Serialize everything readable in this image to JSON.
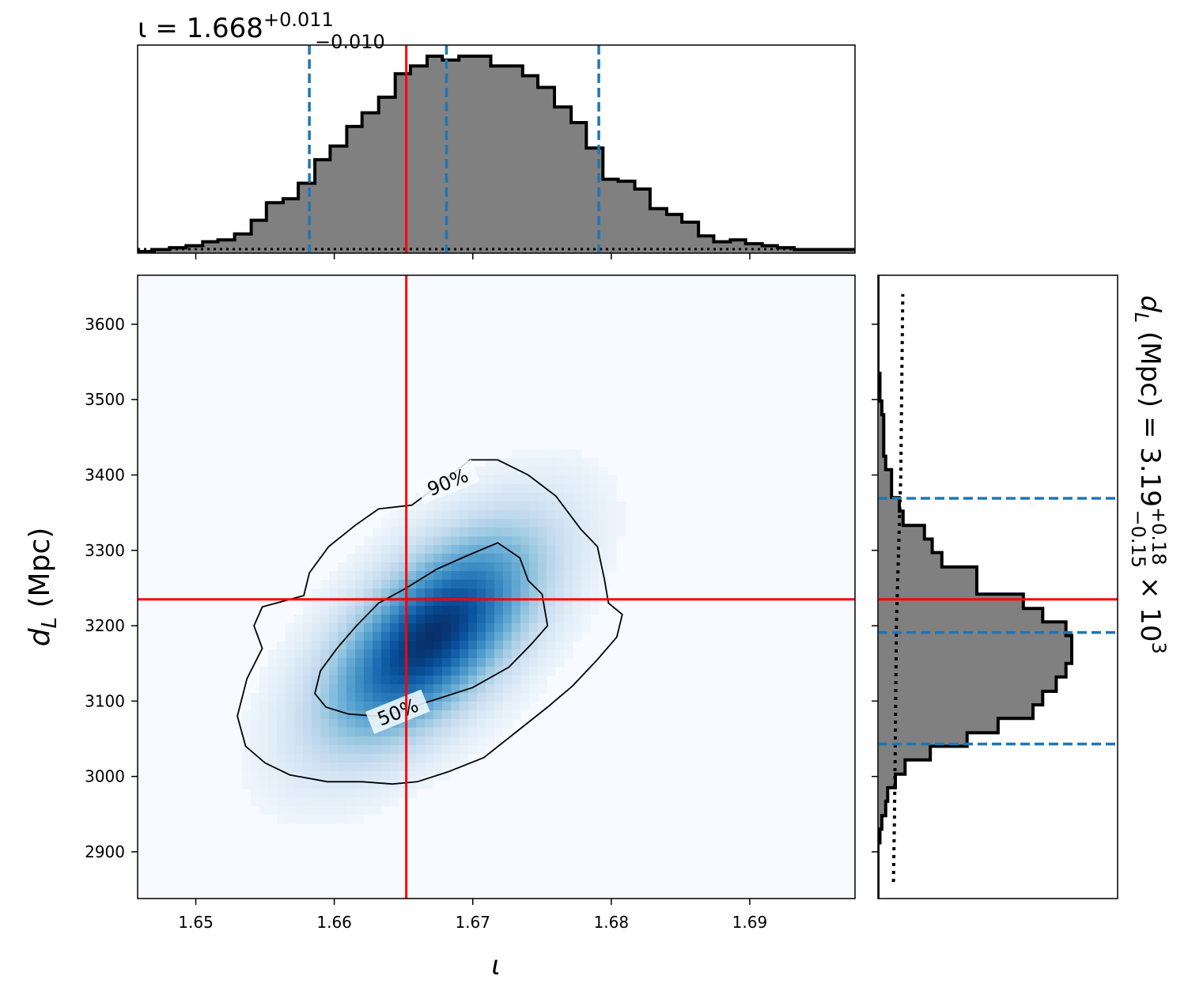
{
  "chart_data": [
    {
      "panel": "top-marginal",
      "type": "histogram",
      "parameter_symbol": "ι",
      "title": {
        "prefix": "ι = 1.668",
        "sup": "+0.011",
        "sub": "−0.010"
      },
      "xlim": [
        1.6458,
        1.6976
      ],
      "bin_edges": [
        1.6458,
        1.647,
        1.6481,
        1.6493,
        1.6505,
        1.6516,
        1.6528,
        1.654,
        1.6551,
        1.6563,
        1.6574,
        1.6586,
        1.6597,
        1.6609,
        1.662,
        1.6632,
        1.6644,
        1.6655,
        1.6667,
        1.6678,
        1.669,
        1.6701,
        1.6713,
        1.6724,
        1.6736,
        1.6747,
        1.6759,
        1.6771,
        1.6782,
        1.6794,
        1.6805,
        1.6817,
        1.6828,
        1.684,
        1.6851,
        1.6863,
        1.6874,
        1.6886,
        1.6897,
        1.6909,
        1.692,
        1.6932,
        1.6943,
        1.6955,
        1.6967,
        1.6976
      ],
      "counts": [
        0.0,
        0.01,
        0.02,
        0.03,
        0.05,
        0.06,
        0.09,
        0.16,
        0.25,
        0.27,
        0.35,
        0.47,
        0.54,
        0.64,
        0.71,
        0.79,
        0.91,
        0.95,
        1.0,
        0.98,
        1.0,
        1.0,
        0.95,
        0.95,
        0.9,
        0.84,
        0.74,
        0.66,
        0.53,
        0.37,
        0.36,
        0.32,
        0.22,
        0.19,
        0.15,
        0.08,
        0.05,
        0.06,
        0.04,
        0.03,
        0.02,
        0.01,
        0.01,
        0.01,
        0.01
      ],
      "quantile_lines": [
        1.6582,
        1.6681,
        1.6791
      ],
      "truth": 1.6652,
      "prior": 0.012
    },
    {
      "panel": "joint",
      "type": "heatmap",
      "xlabel": "ι",
      "ylabel": "d_L (Mpc)",
      "xlim": [
        1.6458,
        1.6976
      ],
      "ylim": [
        2838,
        3665
      ],
      "xticks": [
        1.65,
        1.66,
        1.67,
        1.68,
        1.69
      ],
      "yticks": [
        2900,
        3000,
        3100,
        3200,
        3300,
        3400,
        3500,
        3600
      ],
      "density_peak": {
        "x": 1.667,
        "y": 3185,
        "sx": 0.0052,
        "sy": 95,
        "rho": 0.62
      },
      "colormap": [
        "#f7fbff",
        "#deebf7",
        "#c6dbef",
        "#9ecae1",
        "#6baed6",
        "#4292c6",
        "#2171b5",
        "#08519c",
        "#08306b"
      ],
      "contours": [
        {
          "label": "90%",
          "label_at": {
            "x": 1.6682,
            "y": 3390
          },
          "points": [
            [
              1.6632,
              3355
            ],
            [
              1.6656,
              3360
            ],
            [
              1.6675,
              3386
            ],
            [
              1.6698,
              3420
            ],
            [
              1.6718,
              3420
            ],
            [
              1.674,
              3400
            ],
            [
              1.676,
              3372
            ],
            [
              1.6778,
              3328
            ],
            [
              1.679,
              3305
            ],
            [
              1.6795,
              3262
            ],
            [
              1.6798,
              3230
            ],
            [
              1.6808,
              3215
            ],
            [
              1.6804,
              3185
            ],
            [
              1.679,
              3155
            ],
            [
              1.6772,
              3120
            ],
            [
              1.6754,
              3092
            ],
            [
              1.6732,
              3060
            ],
            [
              1.6708,
              3025
            ],
            [
              1.6682,
              3006
            ],
            [
              1.666,
              2993
            ],
            [
              1.6642,
              2990
            ],
            [
              1.662,
              2993
            ],
            [
              1.6595,
              2993
            ],
            [
              1.6568,
              3002
            ],
            [
              1.655,
              3018
            ],
            [
              1.6536,
              3040
            ],
            [
              1.653,
              3080
            ],
            [
              1.6537,
              3130
            ],
            [
              1.6548,
              3170
            ],
            [
              1.6542,
              3200
            ],
            [
              1.6548,
              3225
            ],
            [
              1.6578,
              3240
            ],
            [
              1.6582,
              3270
            ],
            [
              1.6596,
              3305
            ],
            [
              1.6615,
              3333
            ],
            [
              1.6632,
              3355
            ]
          ]
        },
        {
          "label": "50%",
          "label_at": {
            "x": 1.6646,
            "y": 3085
          },
          "points": [
            [
              1.6652,
              3250
            ],
            [
              1.6674,
              3275
            ],
            [
              1.6696,
              3293
            ],
            [
              1.6718,
              3310
            ],
            [
              1.6734,
              3290
            ],
            [
              1.674,
              3260
            ],
            [
              1.675,
              3242
            ],
            [
              1.6754,
              3200
            ],
            [
              1.6742,
              3175
            ],
            [
              1.6726,
              3145
            ],
            [
              1.67,
              3118
            ],
            [
              1.6666,
              3098
            ],
            [
              1.6646,
              3085
            ],
            [
              1.663,
              3080
            ],
            [
              1.661,
              3083
            ],
            [
              1.6594,
              3092
            ],
            [
              1.6586,
              3110
            ],
            [
              1.659,
              3140
            ],
            [
              1.6602,
              3170
            ],
            [
              1.6616,
              3200
            ],
            [
              1.6632,
              3230
            ],
            [
              1.6652,
              3250
            ]
          ]
        }
      ],
      "truth": {
        "x": 1.6652,
        "y": 3235
      }
    },
    {
      "panel": "right-marginal",
      "type": "histogram",
      "orientation": "horizontal",
      "parameter_symbol": "d_L",
      "title": {
        "prefix": "d",
        "subscript": "L",
        "middle": " (Mpc) = 3.19",
        "sup": "+0.18",
        "sub": "−0.15",
        "suffix": " × 10",
        "exp": "3"
      },
      "ylim": [
        2838,
        3665
      ],
      "bin_edges": [
        2838,
        2856,
        2875,
        2893,
        2912,
        2930,
        2948,
        2967,
        2985,
        3003,
        3022,
        3040,
        3058,
        3077,
        3095,
        3113,
        3132,
        3150,
        3168,
        3187,
        3205,
        3223,
        3242,
        3260,
        3278,
        3297,
        3315,
        3333,
        3352,
        3370,
        3388,
        3407,
        3425,
        3443,
        3462,
        3480,
        3498,
        3517,
        3535,
        3553,
        3572,
        3590,
        3608,
        3627,
        3645,
        3665
      ],
      "counts": [
        0.0,
        0.0,
        0.0,
        0.0,
        0.01,
        0.02,
        0.04,
        0.05,
        0.09,
        0.14,
        0.27,
        0.46,
        0.62,
        0.8,
        0.85,
        0.92,
        0.97,
        1.0,
        1.0,
        0.97,
        0.85,
        0.75,
        0.51,
        0.51,
        0.33,
        0.28,
        0.24,
        0.13,
        0.11,
        0.07,
        0.07,
        0.04,
        0.03,
        0.03,
        0.03,
        0.02,
        0.01,
        0.01,
        0.0,
        0.0,
        0.0,
        0.0,
        0.0,
        0.0,
        0.0
      ],
      "quantile_lines": [
        3043,
        3191,
        3369
      ],
      "truth": 3235,
      "prior_at_y": [
        [
          2860,
          0.08
        ],
        [
          2940,
          0.085
        ],
        [
          3050,
          0.09
        ],
        [
          3200,
          0.095
        ],
        [
          3400,
          0.118
        ],
        [
          3550,
          0.124
        ],
        [
          3640,
          0.128
        ]
      ]
    }
  ]
}
